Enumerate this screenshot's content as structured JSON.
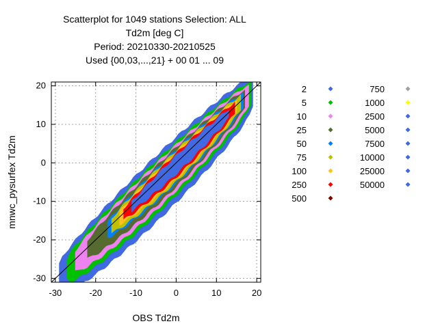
{
  "chart_data": {
    "type": "scatter",
    "title": [
      "Scatterplot for 1049 stations Selection: ALL",
      "Td2m [deg C]",
      "Period: 20210330-20210525",
      "Used {00,03,...,21} + 00 01 ... 09"
    ],
    "xlabel": "OBS Td2m",
    "ylabel": "mnwc_pysurfex Td2m",
    "xlim": [
      -31,
      21
    ],
    "ylim": [
      -31,
      21
    ],
    "xticks": [
      -30,
      -20,
      -10,
      0,
      10,
      20
    ],
    "yticks": [
      -30,
      -20,
      -10,
      0,
      10,
      20
    ],
    "grid": true,
    "diagonal_line": true,
    "legend_placement": "right",
    "legend": [
      {
        "label": "2",
        "color": "#4169e1"
      },
      {
        "label": "5",
        "color": "#00c000"
      },
      {
        "label": "10",
        "color": "#ee82ee"
      },
      {
        "label": "25",
        "color": "#556b2f"
      },
      {
        "label": "50",
        "color": "#0080ff"
      },
      {
        "label": "75",
        "color": "#c0c000"
      },
      {
        "label": "100",
        "color": "#ffc020"
      },
      {
        "label": "250",
        "color": "#ff0000"
      },
      {
        "label": "500",
        "color": "#800000"
      },
      {
        "label": "750",
        "color": "#a0a0a0"
      },
      {
        "label": "1000",
        "color": "#ffff00"
      },
      {
        "label": "2500",
        "color": "#4169e1"
      },
      {
        "label": "5000",
        "color": "#4169e1"
      },
      {
        "label": "7500",
        "color": "#4169e1"
      },
      {
        "label": "10000",
        "color": "#4169e1"
      },
      {
        "label": "25000",
        "color": "#4169e1"
      },
      {
        "label": "50000",
        "color": "#4169e1"
      }
    ],
    "density_bands": [
      {
        "label": "5000",
        "color": "#4169e1",
        "halfwidth": 2.6,
        "xrange": [
          -11,
          13
        ],
        "taper": 0.9
      },
      {
        "label": "100",
        "color": "#ffc020",
        "halfwidth": 4.2,
        "xrange": [
          -14,
          15
        ],
        "taper": 0.75
      },
      {
        "label": "250",
        "color": "#ff0000",
        "halfwidth": 3.6,
        "xrange": [
          -13,
          14.5
        ],
        "taper": 0.8
      },
      {
        "label": "75",
        "color": "#c0c000",
        "halfwidth": 4.9,
        "xrange": [
          -16,
          16
        ],
        "taper": 0.7
      },
      {
        "label": "50",
        "color": "#0080ff",
        "halfwidth": 5.4,
        "xrange": [
          -17,
          16.5
        ],
        "taper": 0.65
      },
      {
        "label": "25",
        "color": "#556b2f",
        "halfwidth": 6.5,
        "xrange": [
          -22,
          17
        ],
        "taper": 0.6
      },
      {
        "label": "10",
        "color": "#ee82ee",
        "halfwidth": 7.8,
        "xrange": [
          -25,
          18
        ],
        "taper": 0.55
      },
      {
        "label": "5",
        "color": "#00c000",
        "halfwidth": 9.2,
        "xrange": [
          -27,
          18.5
        ],
        "taper": 0.5
      },
      {
        "label": "2",
        "color": "#4169e1",
        "halfwidth": 11.5,
        "xrange": [
          -29,
          19
        ],
        "taper": 0.45
      }
    ]
  }
}
